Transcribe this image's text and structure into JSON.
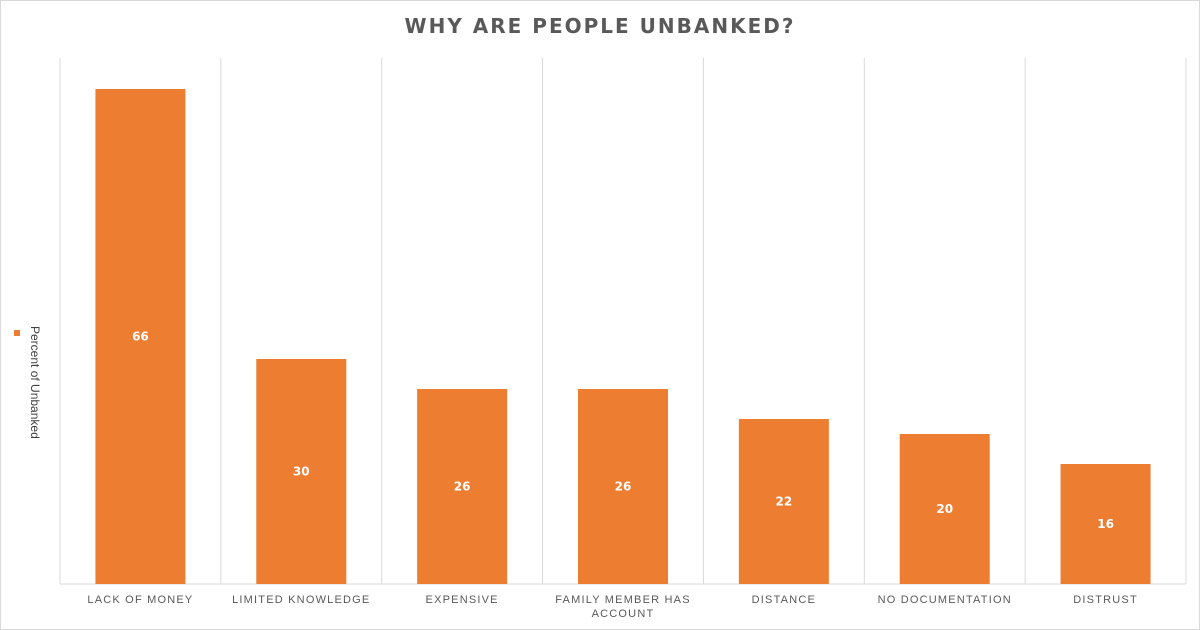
{
  "chart_data": {
    "type": "bar",
    "title": "WHY ARE PEOPLE UNBANKED?",
    "categories": [
      [
        "LACK OF MONEY"
      ],
      [
        "LIMITED KNOWLEDGE"
      ],
      [
        "EXPENSIVE"
      ],
      [
        "FAMILY MEMBER HAS",
        "ACCOUNT"
      ],
      [
        "DISTANCE"
      ],
      [
        "NO DOCUMENTATION"
      ],
      [
        "DISTRUST"
      ]
    ],
    "series": [
      {
        "name": "Percent of Unbanked",
        "values": [
          66,
          30,
          26,
          26,
          22,
          20,
          16
        ],
        "color": "#ed7d31"
      }
    ],
    "ylim": [
      0,
      70
    ],
    "grid": "vertical",
    "legend": "left",
    "data_labels": "inside-center"
  }
}
